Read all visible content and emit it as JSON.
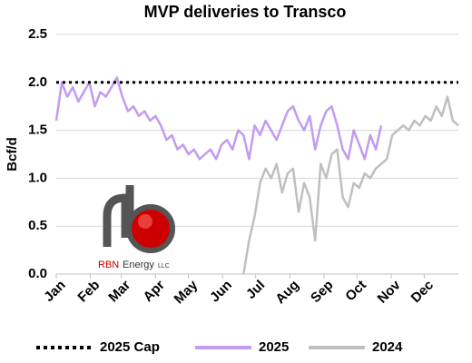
{
  "chart_data": {
    "type": "line",
    "title": "MVP deliveries to Transco",
    "y_label": "Bcf/d",
    "xlim": [
      0,
      365
    ],
    "xticks": [
      {
        "value": 0,
        "label": "Jan"
      },
      {
        "value": 31,
        "label": "Feb"
      },
      {
        "value": 59,
        "label": "Mar"
      },
      {
        "value": 90,
        "label": "Apr"
      },
      {
        "value": 120,
        "label": "May"
      },
      {
        "value": 151,
        "label": "Jun"
      },
      {
        "value": 181,
        "label": "Jul"
      },
      {
        "value": 212,
        "label": "Aug"
      },
      {
        "value": 243,
        "label": "Sep"
      },
      {
        "value": 273,
        "label": "Oct"
      },
      {
        "value": 304,
        "label": "Nov"
      },
      {
        "value": 334,
        "label": "Dec"
      }
    ],
    "ylim": [
      0,
      2.5
    ],
    "yticks": [
      {
        "value": 0,
        "label": "0.0"
      },
      {
        "value": 0.5,
        "label": "0.5"
      },
      {
        "value": 1,
        "label": "1.0"
      },
      {
        "value": 1.5,
        "label": "1.5"
      },
      {
        "value": 2,
        "label": "2.0"
      },
      {
        "value": 2.5,
        "label": "2.5"
      }
    ],
    "grid": true,
    "legend": "bottom",
    "series": [
      {
        "name": "2025 Cap",
        "color": "#000000",
        "style": "dotted",
        "x": [
          0,
          365
        ],
        "values": [
          2.0,
          2.0
        ]
      },
      {
        "name": "2025",
        "color": "#c39bf0",
        "style": "solid",
        "x": [
          0,
          5,
          10,
          15,
          20,
          25,
          30,
          35,
          40,
          45,
          50,
          55,
          60,
          65,
          70,
          75,
          80,
          85,
          90,
          95,
          100,
          105,
          110,
          115,
          120,
          125,
          130,
          135,
          140,
          145,
          150,
          155,
          160,
          165,
          170,
          175,
          180,
          185,
          190,
          195,
          200,
          205,
          210,
          215,
          220,
          225,
          230,
          235,
          240,
          245,
          250,
          255,
          260,
          265,
          270,
          275,
          280,
          285,
          290,
          295
        ],
        "values": [
          1.6,
          2.0,
          1.85,
          1.95,
          1.8,
          1.9,
          2.0,
          1.75,
          1.9,
          1.85,
          1.95,
          2.05,
          1.85,
          1.7,
          1.75,
          1.65,
          1.7,
          1.6,
          1.65,
          1.55,
          1.4,
          1.45,
          1.3,
          1.35,
          1.25,
          1.3,
          1.2,
          1.25,
          1.3,
          1.2,
          1.35,
          1.4,
          1.3,
          1.5,
          1.45,
          1.2,
          1.55,
          1.45,
          1.6,
          1.5,
          1.4,
          1.55,
          1.7,
          1.75,
          1.6,
          1.5,
          1.65,
          1.3,
          1.55,
          1.7,
          1.75,
          1.55,
          1.3,
          1.2,
          1.5,
          1.35,
          1.2,
          1.45,
          1.3,
          1.55
        ]
      },
      {
        "name": "2024",
        "color": "#bfbfbf",
        "style": "solid",
        "x": [
          170,
          175,
          180,
          185,
          190,
          195,
          200,
          205,
          210,
          215,
          220,
          225,
          230,
          235,
          240,
          245,
          250,
          255,
          260,
          265,
          270,
          275,
          280,
          285,
          290,
          295,
          300,
          305,
          310,
          315,
          320,
          325,
          330,
          335,
          340,
          345,
          350,
          355,
          360,
          365
        ],
        "values": [
          0.0,
          0.35,
          0.6,
          0.95,
          1.1,
          1.0,
          1.15,
          0.85,
          1.05,
          1.1,
          0.65,
          0.95,
          0.8,
          0.35,
          1.15,
          1.0,
          1.25,
          1.3,
          0.8,
          0.7,
          0.95,
          0.9,
          1.05,
          1.0,
          1.1,
          1.15,
          1.2,
          1.45,
          1.5,
          1.55,
          1.5,
          1.6,
          1.55,
          1.65,
          1.6,
          1.75,
          1.65,
          1.85,
          1.6,
          1.55
        ]
      }
    ],
    "logo": {
      "brand": "RBN",
      "word": "Energy",
      "suffix": "LLC"
    }
  }
}
